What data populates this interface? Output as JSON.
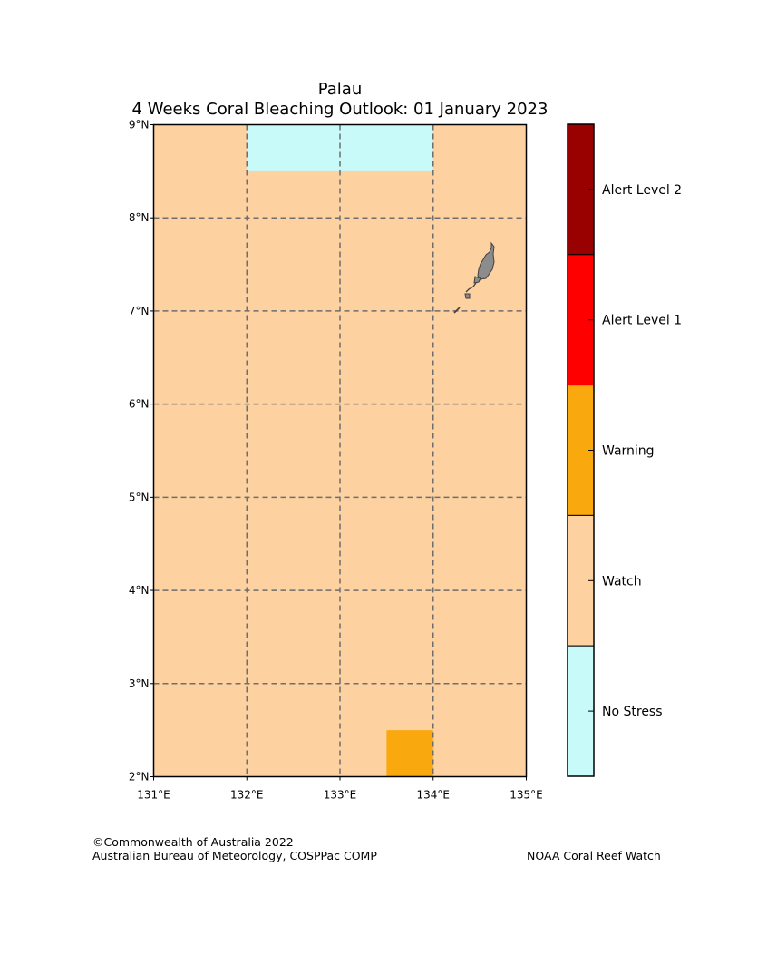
{
  "title": {
    "line1": "Palau",
    "line2": "4 Weeks Coral Bleaching Outlook: 01 January 2023"
  },
  "map": {
    "lon_range": [
      131,
      135
    ],
    "lat_range": [
      2,
      9
    ],
    "lon_ticks": [
      {
        "value": 131,
        "label": "131°E"
      },
      {
        "value": 132,
        "label": "132°E"
      },
      {
        "value": 133,
        "label": "133°E"
      },
      {
        "value": 134,
        "label": "134°E"
      },
      {
        "value": 135,
        "label": "135°E"
      }
    ],
    "lat_ticks": [
      {
        "value": 9,
        "label": "9°N"
      },
      {
        "value": 8,
        "label": "8°N"
      },
      {
        "value": 7,
        "label": "7°N"
      },
      {
        "value": 6,
        "label": "6°N"
      },
      {
        "value": 5,
        "label": "5°N"
      },
      {
        "value": 4,
        "label": "4°N"
      },
      {
        "value": 3,
        "label": "3°N"
      },
      {
        "value": 2,
        "label": "2°N"
      }
    ],
    "background_level": "Watch",
    "regions": [
      {
        "name": "no-stress-region",
        "level": "No Stress",
        "lon": [
          132,
          134
        ],
        "lat": [
          8.5,
          9
        ]
      },
      {
        "name": "warning-region",
        "level": "Warning",
        "lon": [
          133.5,
          134
        ],
        "lat": [
          2,
          2.5
        ]
      }
    ],
    "land_color": "#8c8c8c"
  },
  "legend": [
    {
      "label": "Alert Level 2",
      "color": "#990000"
    },
    {
      "label": "Alert Level 1",
      "color": "#ff0000"
    },
    {
      "label": "Warning",
      "color": "#f9a80e"
    },
    {
      "label": "Watch",
      "color": "#fdd1a0"
    },
    {
      "label": "No Stress",
      "color": "#c8fafa"
    }
  ],
  "footer": {
    "copyright": "©Commonwealth of Australia 2022",
    "agency": "Australian Bureau of Meteorology, COSPPac COMP",
    "partner": "NOAA Coral Reef Watch"
  }
}
